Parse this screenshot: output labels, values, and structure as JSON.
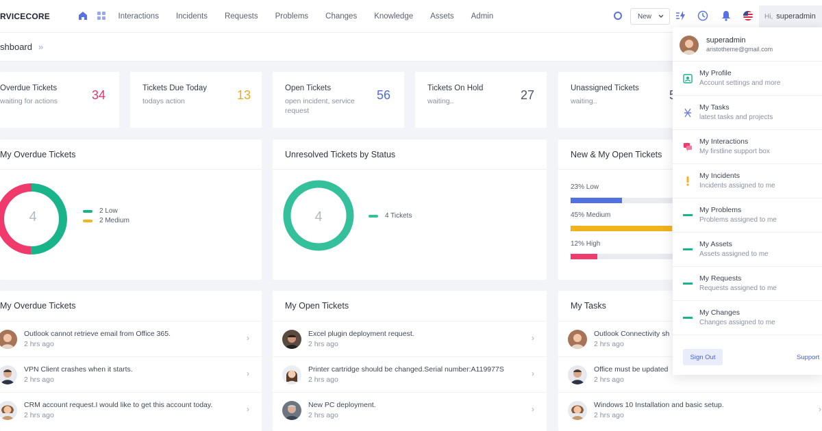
{
  "header": {
    "brand": "RVICECORE",
    "nav": [
      "Interactions",
      "Incidents",
      "Requests",
      "Problems",
      "Changes",
      "Knowledge",
      "Assets",
      "Admin"
    ],
    "new_button": "New",
    "greeting_hi": "Hi,",
    "username": "superadmin"
  },
  "breadcrumb": {
    "title": "shboard"
  },
  "stats": [
    {
      "title": "Overdue Tickets",
      "subtitle": "waiting for actions",
      "value": "34",
      "color": "#e8336d"
    },
    {
      "title": "Tickets Due Today",
      "subtitle": "todays action",
      "value": "13",
      "color": "#f0a81c"
    },
    {
      "title": "Open Tickets",
      "subtitle": "open incident, service request",
      "value": "56",
      "color": "#4f6ae0"
    },
    {
      "title": "Tickets On Hold",
      "subtitle": "waiting..",
      "value": "27",
      "color": "#4e5566"
    },
    {
      "title": "Unassigned Tickets",
      "subtitle": "waiting..",
      "value": "5",
      "color": "#4e5566"
    }
  ],
  "chart_data": [
    {
      "type": "pie",
      "title": "My Overdue Tickets",
      "center_label": "4",
      "categories": [
        "Low",
        "Medium"
      ],
      "values": [
        2,
        2
      ],
      "legend": [
        "2 Low",
        "2 Medium"
      ],
      "colors": [
        "#1ab48a",
        "#f03a6c"
      ],
      "legend_colors": [
        "#1ab48a",
        "#f0b324"
      ]
    },
    {
      "type": "pie",
      "title": "Unresolved Tickets by Status",
      "center_label": "4",
      "categories": [
        "Tickets"
      ],
      "values": [
        4
      ],
      "legend": [
        "4 Tickets"
      ],
      "colors": [
        "#34c09a"
      ]
    },
    {
      "type": "bar",
      "title": "New & My Open Tickets",
      "categories": [
        "Low",
        "Medium",
        "High"
      ],
      "values": [
        23,
        45,
        12
      ],
      "labels": [
        "23% Low",
        "45% Medium",
        "12% High"
      ],
      "colors": [
        "#4f72e0",
        "#f2b21e",
        "#ef3b6d"
      ]
    }
  ],
  "panels": {
    "overdue_donut_title": "My Overdue Tickets",
    "status_donut_title": "Unresolved Tickets by Status",
    "open_bars_title": "New & My Open Tickets"
  },
  "lists": {
    "overdue": {
      "title": "My Overdue Tickets",
      "items": [
        {
          "text": "Outlook cannot retrieve email from Office 365.",
          "time": "2 hrs ago"
        },
        {
          "text": "VPN Client crashes when it starts.",
          "time": "2 hrs ago"
        },
        {
          "text": "CRM account request.I would like to get this account today.",
          "time": "2 hrs ago"
        }
      ]
    },
    "open": {
      "title": "My Open Tickets",
      "items": [
        {
          "text": "Excel plugin deployment request.",
          "time": "2 hrs ago"
        },
        {
          "text": "Printer cartridge should be changed.Serial number:A119977S",
          "time": "2 hrs ago"
        },
        {
          "text": "New PC deployment.",
          "time": "2 hrs ago"
        }
      ]
    },
    "tasks": {
      "title": "My Tasks",
      "items": [
        {
          "text": "Outlook Connectivity sh",
          "time": "2 hrs ago"
        },
        {
          "text": "Office must be updated",
          "time": "2 hrs ago"
        },
        {
          "text": "Windows 10 Installation and basic setup.",
          "time": "2 hrs ago"
        }
      ]
    }
  },
  "dropdown": {
    "name": "superadmin",
    "email": "aristotheme@gmail.com",
    "items": [
      {
        "label": "My Profile",
        "sub": "Account settings and more",
        "icon": "profile-icon",
        "color": "#1ab48a"
      },
      {
        "label": "My Tasks",
        "sub": "latest tasks and projects",
        "icon": "tasks-icon",
        "color": "#6f7fe0"
      },
      {
        "label": "My Interactions",
        "sub": "My firstline support box",
        "icon": "chat-icon",
        "color": "#ef3b6d"
      },
      {
        "label": "My Incidents",
        "sub": "Incidents assigned to me",
        "icon": "exclamation-icon",
        "color": "#f2b21e"
      },
      {
        "label": "My Problems",
        "sub": "Problems assigned to me",
        "icon": "dash-icon",
        "color": "#1ab48a"
      },
      {
        "label": "My Assets",
        "sub": "Assets assigned to me",
        "icon": "dash-icon",
        "color": "#1ab48a"
      },
      {
        "label": "My Requests",
        "sub": "Requests assigned to me",
        "icon": "dash-icon",
        "color": "#1ab48a"
      },
      {
        "label": "My Changes",
        "sub": "Changes assigned to me",
        "icon": "dash-icon",
        "color": "#1ab48a"
      }
    ],
    "signout": "Sign Out",
    "support": "Support"
  }
}
